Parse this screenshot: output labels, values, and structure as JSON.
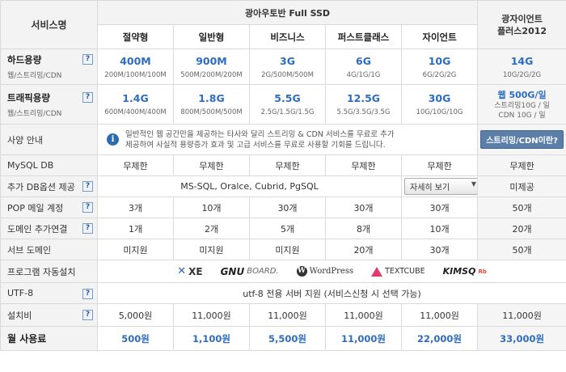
{
  "header": {
    "service_name": "서비스명",
    "group_title": "광아우토반 Full SSD",
    "plans": [
      "절약형",
      "일반형",
      "비즈니스",
      "퍼스트클래스",
      "자이언트"
    ],
    "side_plan": [
      "광자이언트",
      "플러스2012"
    ]
  },
  "help_glyph": "?",
  "rows": {
    "disk": {
      "label": "하드용량",
      "sub": "웹/스트리밍/CDN",
      "values": [
        "400M",
        "900M",
        "3G",
        "6G",
        "10G",
        "14G"
      ],
      "details": [
        "200M/100M/100M",
        "500M/200M/200M",
        "2G/500M/500M",
        "4G/1G/1G",
        "6G/2G/2G",
        "10G/2G/2G"
      ]
    },
    "traffic": {
      "label": "트래픽용량",
      "sub": "웹/스트리밍/CDN",
      "values": [
        "1.4G",
        "1.8G",
        "5.5G",
        "12.5G",
        "30G",
        "웹 500G/일"
      ],
      "details": [
        "600M/400M/400M",
        "800M/500M/500M",
        "2.5G/1.5G/1.5G",
        "5.5G/3.5G/3.5G",
        "10G/10G/10G"
      ],
      "side_details": [
        "스트리밍10G / 일",
        "CDN 10G / 일"
      ]
    },
    "spec": {
      "label": "사양 안내",
      "info_icon": "i",
      "info_lines": [
        "일반적인 웹 공간만을 제공하는 타사와 달리 스트리밍 & CDN 서비스를 무료로 추가",
        "제공하여 사실적 용량증가 효과 및 고급 서비스를 무료로 사용할 기회를 드립니다."
      ],
      "button": "스트리밍/CDN이란?"
    },
    "mysql": {
      "label": "MySQL DB",
      "values": [
        "무제한",
        "무제한",
        "무제한",
        "무제한",
        "무제한",
        "무제한"
      ]
    },
    "extra_db": {
      "label": "추가 DB옵션 제공",
      "text": "MS-SQL, Oralce, Cubrid, PgSQL",
      "select": "자세히 보기",
      "caret": "▼",
      "side": "미제공"
    },
    "pop": {
      "label": "POP 메일 계정",
      "values": [
        "3개",
        "10개",
        "30개",
        "30개",
        "30개",
        "50개"
      ]
    },
    "domain": {
      "label": "도메인 추가연결",
      "values": [
        "1개",
        "2개",
        "5개",
        "8개",
        "10개",
        "20개"
      ]
    },
    "subdomain": {
      "label": "서브 도메인",
      "values": [
        "미지원",
        "미지원",
        "미지원",
        "20개",
        "30개",
        "50개"
      ]
    },
    "install": {
      "label": "프로그램 자동설치",
      "logos": {
        "xe_x": "✕",
        "xe": "XE",
        "gnu": "GNU",
        "gnu_board": "BOARD.",
        "wp_w": "W",
        "wp": "WordPress",
        "tc": "TEXTCUBE",
        "kimsq": "KIMSQ",
        "kimsq_rb": "Rb"
      }
    },
    "utf8": {
      "label": "UTF-8",
      "text": "utf-8 전용 서버 지원 (서비스신청 시 선택 가능)"
    },
    "setup": {
      "label": "설치비",
      "values": [
        "5,000원",
        "11,000원",
        "11,000원",
        "11,000원",
        "11,000원",
        "11,000원"
      ]
    },
    "monthly": {
      "label": "월 사용료",
      "values": [
        "500원",
        "1,100원",
        "5,500원",
        "11,000원",
        "22,000원",
        "33,000원"
      ]
    }
  }
}
